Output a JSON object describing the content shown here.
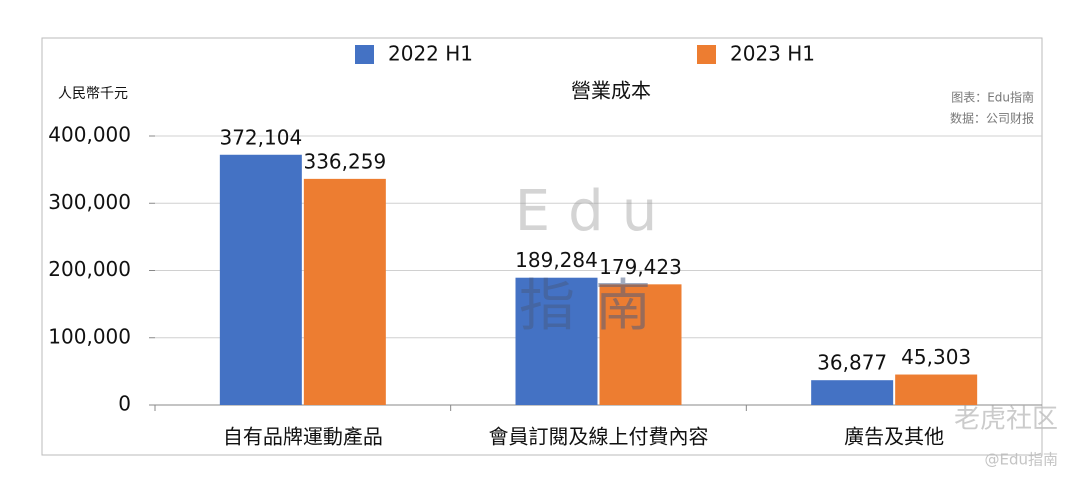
{
  "chart_data": {
    "type": "bar",
    "title": "營業成本",
    "y_label": "人民幣千元",
    "notes": [
      "图表：Edu指南",
      "数据：公司财报"
    ],
    "watermarks": [
      "Edu",
      "指南",
      "老虎社区",
      "@Edu指南"
    ],
    "categories": [
      "自有品牌運動產品",
      "會員訂閱及線上付費內容",
      "廣告及其他"
    ],
    "series": [
      {
        "name": "2022 H1",
        "color": "#4472c4",
        "values": [
          372104,
          189284,
          36877
        ],
        "value_labels": [
          "372,104",
          "189,284",
          "36,877"
        ]
      },
      {
        "name": "2023 H1",
        "color": "#ed7d31",
        "values": [
          336259,
          179423,
          45303
        ],
        "value_labels": [
          "336,259",
          "179,423",
          "45,303"
        ]
      }
    ],
    "ylim": [
      0,
      400000
    ],
    "yticks": [
      0,
      {
        "value": 100000,
        "label": "100,000"
      },
      {
        "value": 200000,
        "label": "200,000"
      },
      {
        "value": 300000,
        "label": "300,000"
      },
      {
        "value": 400000,
        "label": "400,000"
      }
    ],
    "grid": true,
    "legend": "top"
  }
}
